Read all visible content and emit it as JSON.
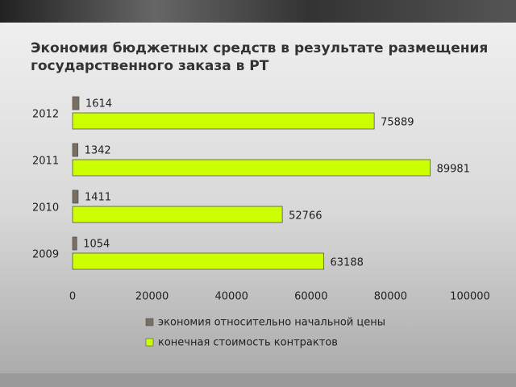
{
  "chart_data": {
    "type": "bar",
    "orientation": "horizontal",
    "title": "Экономия бюджетных средств в результате размещения государственного заказа в РТ",
    "categories": [
      "2012",
      "2011",
      "2010",
      "2009"
    ],
    "series": [
      {
        "name": "экономия относительно начальной цены",
        "color": "#7a6e60",
        "values": [
          1614,
          1342,
          1411,
          1054
        ]
      },
      {
        "name": "конечная стоимость контрактов",
        "color": "#ccff00",
        "values": [
          75889,
          89981,
          52766,
          63188
        ]
      }
    ],
    "xlim": [
      0,
      100000
    ],
    "xticks": [
      0,
      20000,
      40000,
      60000,
      80000,
      100000
    ],
    "grid": false,
    "data_labels": true,
    "legend": "bottom"
  }
}
